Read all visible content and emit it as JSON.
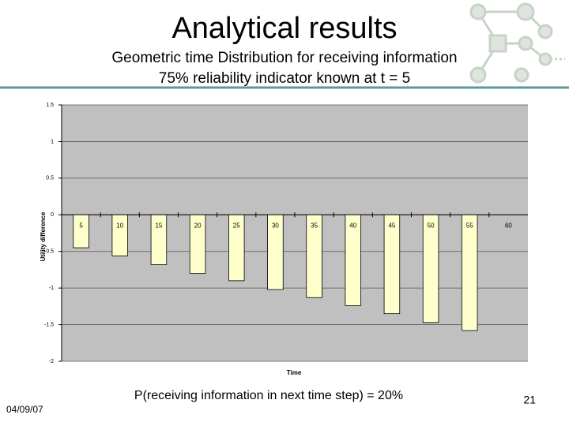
{
  "slide": {
    "title": "Analytical results",
    "subtitle": [
      "Geometric time Distribution for receiving information",
      "75% reliability indicator known at t = 5"
    ],
    "footer": "P(receiving information in next time step) = 20%",
    "date": "04/09/07",
    "page": "21"
  },
  "chart_data": {
    "type": "bar",
    "xlabel": "Time",
    "ylabel": "Utility difference",
    "categories": [
      "5",
      "10",
      "15",
      "20",
      "25",
      "30",
      "35",
      "40",
      "45",
      "50",
      "55",
      "60"
    ],
    "values": [
      -0.45,
      -0.56,
      -0.68,
      -0.8,
      -0.9,
      -1.02,
      -1.13,
      -1.24,
      -1.35,
      -1.47,
      -1.58,
      0
    ],
    "color": "#ffffcc",
    "ylim": [
      -2,
      1.5
    ],
    "yticks": [
      -2,
      -1.5,
      -1,
      -0.5,
      0,
      0.5,
      1,
      1.5
    ],
    "grid": true
  }
}
